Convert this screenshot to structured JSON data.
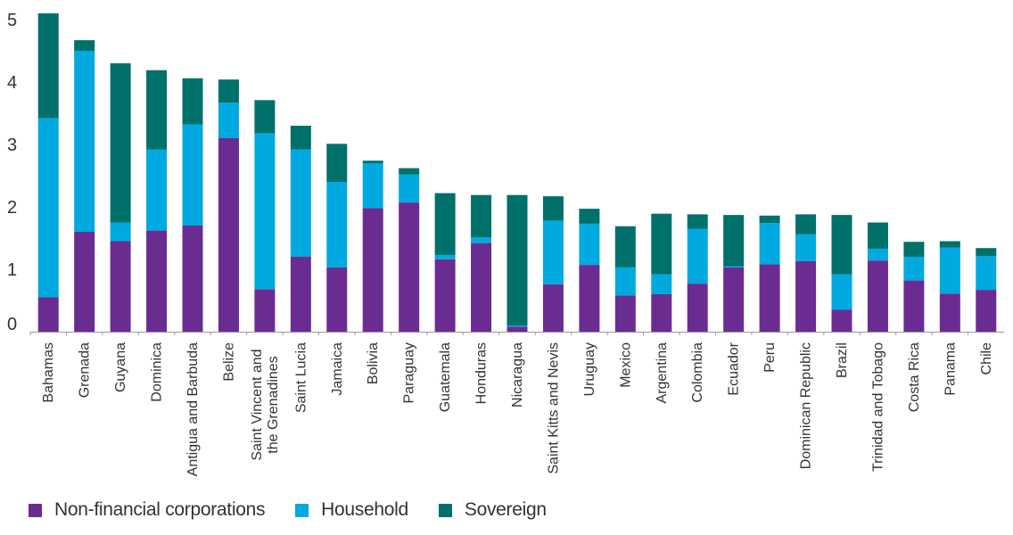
{
  "chart_data": {
    "type": "bar",
    "stacked": true,
    "title": "",
    "xlabel": "",
    "ylabel": "",
    "ylim": [
      0,
      5
    ],
    "yticks": [
      0,
      1,
      2,
      3,
      4,
      5
    ],
    "categories": [
      "Bahamas",
      "Grenada",
      "Guyana",
      "Dominica",
      "Antigua and Barbuda",
      "Belize",
      "Saint Vincent and the Grenadines",
      "Saint Lucia",
      "Jamaica",
      "Bolivia",
      "Paraguay",
      "Guatemala",
      "Honduras",
      "Nicaragua",
      "Saint Kitts and Nevis",
      "Uruguay",
      "Mexico",
      "Argentina",
      "Colombia",
      "Ecuador",
      "Peru",
      "Dominican Republic",
      "Brazil",
      "Trinidad and Tobago",
      "Costa Rica",
      "Panama",
      "Chile"
    ],
    "series": [
      {
        "name": "Non-financial corporations",
        "color": "#6b2c91",
        "values": [
          0.55,
          1.6,
          1.45,
          1.62,
          1.7,
          3.1,
          0.68,
          1.2,
          1.03,
          1.98,
          2.07,
          1.16,
          1.42,
          0.08,
          0.76,
          1.07,
          0.58,
          0.6,
          0.77,
          1.03,
          1.08,
          1.13,
          0.35,
          1.14,
          0.82,
          0.61,
          0.67
        ]
      },
      {
        "name": "Household",
        "color": "#00a9e0",
        "values": [
          2.87,
          2.9,
          0.3,
          1.3,
          1.62,
          0.57,
          2.5,
          1.72,
          1.37,
          0.72,
          0.45,
          0.07,
          0.09,
          0.02,
          1.02,
          0.66,
          0.45,
          0.32,
          0.88,
          0.02,
          0.66,
          0.43,
          0.57,
          0.19,
          0.38,
          0.74,
          0.54
        ]
      },
      {
        "name": "Sovereign",
        "color": "#00706b",
        "values": [
          1.68,
          0.17,
          2.55,
          1.27,
          0.74,
          0.37,
          0.53,
          0.38,
          0.61,
          0.04,
          0.1,
          0.99,
          0.68,
          2.09,
          0.39,
          0.24,
          0.66,
          0.97,
          0.23,
          0.82,
          0.12,
          0.32,
          0.95,
          0.42,
          0.24,
          0.1,
          0.13
        ]
      }
    ],
    "legend_position": "bottom-left",
    "grid": false
  }
}
